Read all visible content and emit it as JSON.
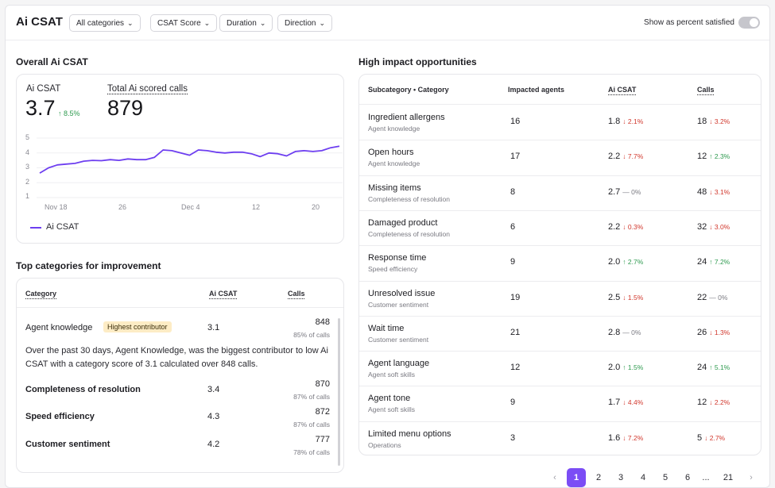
{
  "header": {
    "title": "Ai CSAT",
    "filters": [
      "All categories",
      "CSAT Score",
      "Duration",
      "Direction"
    ],
    "toggle_label": "Show as percent satisfied",
    "toggle_on": false
  },
  "overall": {
    "section_title": "Overall Ai CSAT",
    "csat_label": "Ai CSAT",
    "csat_value": "3.7",
    "csat_delta": "↑ 8.5%",
    "calls_label": "Total Ai scored calls",
    "calls_value": "879",
    "legend": "Ai CSAT",
    "accent_color": "#6d3ef0"
  },
  "chart_data": {
    "type": "line",
    "x_ticks": [
      "Nov 18",
      "26",
      "Dec 4",
      "12",
      "20"
    ],
    "y_ticks": [
      "5",
      "4",
      "3",
      "2",
      "1"
    ],
    "ylim": [
      1,
      5
    ],
    "series": [
      {
        "name": "Ai CSAT",
        "values": [
          2.65,
          3.0,
          3.2,
          3.25,
          3.3,
          3.45,
          3.5,
          3.48,
          3.55,
          3.5,
          3.6,
          3.55,
          3.55,
          3.7,
          4.2,
          4.15,
          4.0,
          3.85,
          4.2,
          4.15,
          4.05,
          4.0,
          4.05,
          4.05,
          3.95,
          3.75,
          4.0,
          3.95,
          3.8,
          4.1,
          4.15,
          4.1,
          4.15,
          4.35,
          4.45
        ]
      }
    ]
  },
  "improvement": {
    "section_title": "Top categories for improvement",
    "columns": [
      "Category",
      "Ai CSAT",
      "Calls"
    ],
    "badge": "Highest contributor",
    "description": "Over the past 30 days, Agent Knowledge, was the biggest contributor to low Ai CSAT with a category score of 3.1 calculated over 848 calls.",
    "rows": [
      {
        "name": "Agent knowledge",
        "score": "3.1",
        "calls": "848",
        "pct": "85% of calls"
      },
      {
        "name": "Completeness of resolution",
        "score": "3.4",
        "calls": "870",
        "pct": "87% of calls"
      },
      {
        "name": "Speed efficiency",
        "score": "4.3",
        "calls": "872",
        "pct": "87% of calls"
      },
      {
        "name": "Customer sentiment",
        "score": "4.2",
        "calls": "777",
        "pct": "78% of calls"
      }
    ]
  },
  "opportunities": {
    "section_title": "High impact opportunities",
    "columns": [
      "Subcategory • Category",
      "Impacted agents",
      "Ai CSAT",
      "Calls"
    ],
    "rows": [
      {
        "title": "Ingredient allergens",
        "sub": "Agent knowledge",
        "agents": "16",
        "csat": "1.8",
        "csat_delta": "↓ 2.1%",
        "csat_dir": "down",
        "calls": "18",
        "calls_delta": "↓ 3.2%",
        "calls_dir": "down"
      },
      {
        "title": "Open hours",
        "sub": "Agent knowledge",
        "agents": "17",
        "csat": "2.2",
        "csat_delta": "↓ 7.7%",
        "csat_dir": "down",
        "calls": "12",
        "calls_delta": "↑ 2.3%",
        "calls_dir": "up"
      },
      {
        "title": "Missing items",
        "sub": "Completeness of resolution",
        "agents": "8",
        "csat": "2.7",
        "csat_delta": "— 0%",
        "csat_dir": "flat",
        "calls": "48",
        "calls_delta": "↓ 3.1%",
        "calls_dir": "down"
      },
      {
        "title": "Damaged product",
        "sub": "Completeness of resolution",
        "agents": "6",
        "csat": "2.2",
        "csat_delta": "↓ 0.3%",
        "csat_dir": "down",
        "calls": "32",
        "calls_delta": "↓ 3.0%",
        "calls_dir": "down"
      },
      {
        "title": "Response time",
        "sub": "Speed efficiency",
        "agents": "9",
        "csat": "2.0",
        "csat_delta": "↑ 2.7%",
        "csat_dir": "up",
        "calls": "24",
        "calls_delta": "↑ 7.2%",
        "calls_dir": "up"
      },
      {
        "title": "Unresolved issue",
        "sub": "Customer sentiment",
        "agents": "19",
        "csat": "2.5",
        "csat_delta": "↓ 1.5%",
        "csat_dir": "down",
        "calls": "22",
        "calls_delta": "— 0%",
        "calls_dir": "flat"
      },
      {
        "title": "Wait time",
        "sub": "Customer sentiment",
        "agents": "21",
        "csat": "2.8",
        "csat_delta": "— 0%",
        "csat_dir": "flat",
        "calls": "26",
        "calls_delta": "↓ 1.3%",
        "calls_dir": "down"
      },
      {
        "title": "Agent language",
        "sub": "Agent soft skills",
        "agents": "12",
        "csat": "2.0",
        "csat_delta": "↑ 1.5%",
        "csat_dir": "up",
        "calls": "24",
        "calls_delta": "↑ 5.1%",
        "calls_dir": "up"
      },
      {
        "title": "Agent tone",
        "sub": "Agent soft skills",
        "agents": "9",
        "csat": "1.7",
        "csat_delta": "↓ 4.4%",
        "csat_dir": "down",
        "calls": "12",
        "calls_delta": "↓ 2.2%",
        "calls_dir": "down"
      },
      {
        "title": "Limited menu options",
        "sub": "Operations",
        "agents": "3",
        "csat": "1.6",
        "csat_delta": "↓ 7.2%",
        "csat_dir": "down",
        "calls": "5",
        "calls_delta": "↓ 2.7%",
        "calls_dir": "down"
      }
    ]
  },
  "pagination": {
    "prev": "‹",
    "pages": [
      "1",
      "2",
      "3",
      "4",
      "5",
      "6",
      "...",
      "21"
    ],
    "current": "1",
    "next": "›"
  }
}
